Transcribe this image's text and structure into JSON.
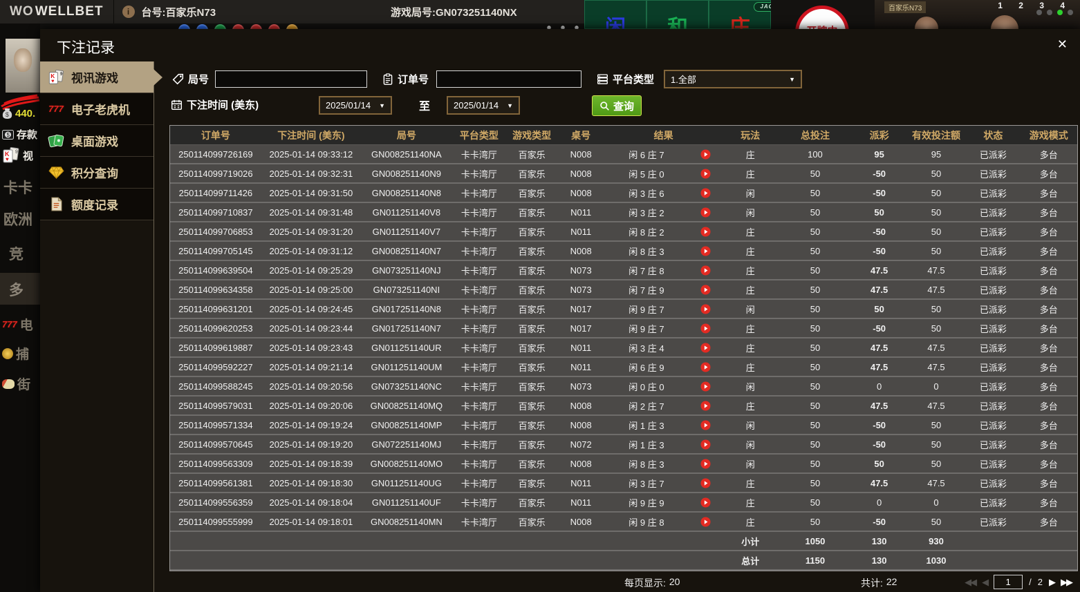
{
  "background": {
    "brand_mark": "WO",
    "brand": "WELLBET",
    "info_icon": "i",
    "table_label": "台号:百家乐N73",
    "round_label": "游戏局号:GN073251140NX",
    "jackpot_label": "JACKPOT",
    "jackpot_help": "?",
    "zone_player": "闲",
    "zone_tie": "和",
    "zone_banker": "庄",
    "dealing_badge": "开牌中",
    "video_sign": "百家乐N73",
    "shoe_numbers": "1 2 3 4",
    "left_nav": {
      "balance": "440.",
      "deposit": "存款",
      "video_label": "视",
      "items": [
        "卡卡",
        "欧洲",
        "竞",
        "多",
        "电",
        "捕",
        "街"
      ]
    }
  },
  "modal": {
    "title": "下注记录",
    "close": "✕",
    "tabs": [
      {
        "label": "视讯游戏",
        "active": true
      },
      {
        "label": "电子老虎机",
        "active": false
      },
      {
        "label": "桌面游戏",
        "active": false
      },
      {
        "label": "积分查询",
        "active": false
      },
      {
        "label": "额度记录",
        "active": false
      }
    ],
    "filters": {
      "round_label": "局号",
      "order_label": "订单号",
      "platform_label": "平台类型",
      "platform_value": "1.全部",
      "time_label": "下注时间 (美东)",
      "date_from": "2025/01/14",
      "date_to": "2025/01/14",
      "to_label": "至",
      "search_label": "查询",
      "caret": "▼"
    },
    "table": {
      "headers": [
        "订单号",
        "下注时间 (美东)",
        "局号",
        "平台类型",
        "游戏类型",
        "桌号",
        "结果",
        "玩法",
        "总投注",
        "派彩",
        "有效投注额",
        "状态",
        "游戏模式"
      ],
      "rows": [
        {
          "order": "250114099726169",
          "time": "2025-01-14 09:33:12",
          "round": "GN008251140NA",
          "platform": "卡卡湾厅",
          "game": "百家乐",
          "table_no": "N008",
          "result": "闲 6 庄 7",
          "bet_side": "庄",
          "total_bet": "100",
          "payout": "95",
          "payout_tone": "pos",
          "valid_bet": "95",
          "status": "已派彩",
          "mode": "多台"
        },
        {
          "order": "250114099719026",
          "time": "2025-01-14 09:32:31",
          "round": "GN008251140N9",
          "platform": "卡卡湾厅",
          "game": "百家乐",
          "table_no": "N008",
          "result": "闲 5 庄 0",
          "bet_side": "庄",
          "total_bet": "50",
          "payout": "-50",
          "payout_tone": "neg",
          "valid_bet": "50",
          "status": "已派彩",
          "mode": "多台"
        },
        {
          "order": "250114099711426",
          "time": "2025-01-14 09:31:50",
          "round": "GN008251140N8",
          "platform": "卡卡湾厅",
          "game": "百家乐",
          "table_no": "N008",
          "result": "闲 3 庄 6",
          "bet_side": "闲",
          "total_bet": "50",
          "payout": "-50",
          "payout_tone": "neg",
          "valid_bet": "50",
          "status": "已派彩",
          "mode": "多台"
        },
        {
          "order": "250114099710837",
          "time": "2025-01-14 09:31:48",
          "round": "GN011251140V8",
          "platform": "卡卡湾厅",
          "game": "百家乐",
          "table_no": "N011",
          "result": "闲 3 庄 2",
          "bet_side": "闲",
          "total_bet": "50",
          "payout": "50",
          "payout_tone": "pos",
          "valid_bet": "50",
          "status": "已派彩",
          "mode": "多台"
        },
        {
          "order": "250114099706853",
          "time": "2025-01-14 09:31:20",
          "round": "GN011251140V7",
          "platform": "卡卡湾厅",
          "game": "百家乐",
          "table_no": "N011",
          "result": "闲 8 庄 2",
          "bet_side": "庄",
          "total_bet": "50",
          "payout": "-50",
          "payout_tone": "neg",
          "valid_bet": "50",
          "status": "已派彩",
          "mode": "多台"
        },
        {
          "order": "250114099705145",
          "time": "2025-01-14 09:31:12",
          "round": "GN008251140N7",
          "platform": "卡卡湾厅",
          "game": "百家乐",
          "table_no": "N008",
          "result": "闲 8 庄 3",
          "bet_side": "庄",
          "total_bet": "50",
          "payout": "-50",
          "payout_tone": "neg",
          "valid_bet": "50",
          "status": "已派彩",
          "mode": "多台"
        },
        {
          "order": "250114099639504",
          "time": "2025-01-14 09:25:29",
          "round": "GN073251140NJ",
          "platform": "卡卡湾厅",
          "game": "百家乐",
          "table_no": "N073",
          "result": "闲 7 庄 8",
          "bet_side": "庄",
          "total_bet": "50",
          "payout": "47.5",
          "payout_tone": "pos",
          "valid_bet": "47.5",
          "status": "已派彩",
          "mode": "多台"
        },
        {
          "order": "250114099634358",
          "time": "2025-01-14 09:25:00",
          "round": "GN073251140NI",
          "platform": "卡卡湾厅",
          "game": "百家乐",
          "table_no": "N073",
          "result": "闲 7 庄 9",
          "bet_side": "庄",
          "total_bet": "50",
          "payout": "47.5",
          "payout_tone": "pos",
          "valid_bet": "47.5",
          "status": "已派彩",
          "mode": "多台"
        },
        {
          "order": "250114099631201",
          "time": "2025-01-14 09:24:45",
          "round": "GN017251140N8",
          "platform": "卡卡湾厅",
          "game": "百家乐",
          "table_no": "N017",
          "result": "闲 9 庄 7",
          "bet_side": "闲",
          "total_bet": "50",
          "payout": "50",
          "payout_tone": "pos",
          "valid_bet": "50",
          "status": "已派彩",
          "mode": "多台"
        },
        {
          "order": "250114099620253",
          "time": "2025-01-14 09:23:44",
          "round": "GN017251140N7",
          "platform": "卡卡湾厅",
          "game": "百家乐",
          "table_no": "N017",
          "result": "闲 9 庄 7",
          "bet_side": "庄",
          "total_bet": "50",
          "payout": "-50",
          "payout_tone": "neg",
          "valid_bet": "50",
          "status": "已派彩",
          "mode": "多台"
        },
        {
          "order": "250114099619887",
          "time": "2025-01-14 09:23:43",
          "round": "GN011251140UR",
          "platform": "卡卡湾厅",
          "game": "百家乐",
          "table_no": "N011",
          "result": "闲 3 庄 4",
          "bet_side": "庄",
          "total_bet": "50",
          "payout": "47.5",
          "payout_tone": "pos",
          "valid_bet": "47.5",
          "status": "已派彩",
          "mode": "多台"
        },
        {
          "order": "250114099592227",
          "time": "2025-01-14 09:21:14",
          "round": "GN011251140UM",
          "platform": "卡卡湾厅",
          "game": "百家乐",
          "table_no": "N011",
          "result": "闲 6 庄 9",
          "bet_side": "庄",
          "total_bet": "50",
          "payout": "47.5",
          "payout_tone": "pos",
          "valid_bet": "47.5",
          "status": "已派彩",
          "mode": "多台"
        },
        {
          "order": "250114099588245",
          "time": "2025-01-14 09:20:56",
          "round": "GN073251140NC",
          "platform": "卡卡湾厅",
          "game": "百家乐",
          "table_no": "N073",
          "result": "闲 0 庄 0",
          "bet_side": "闲",
          "total_bet": "50",
          "payout": "0",
          "payout_tone": "zero",
          "valid_bet": "0",
          "status": "已派彩",
          "mode": "多台"
        },
        {
          "order": "250114099579031",
          "time": "2025-01-14 09:20:06",
          "round": "GN008251140MQ",
          "platform": "卡卡湾厅",
          "game": "百家乐",
          "table_no": "N008",
          "result": "闲 2 庄 7",
          "bet_side": "庄",
          "total_bet": "50",
          "payout": "47.5",
          "payout_tone": "pos",
          "valid_bet": "47.5",
          "status": "已派彩",
          "mode": "多台"
        },
        {
          "order": "250114099571334",
          "time": "2025-01-14 09:19:24",
          "round": "GN008251140MP",
          "platform": "卡卡湾厅",
          "game": "百家乐",
          "table_no": "N008",
          "result": "闲 1 庄 3",
          "bet_side": "闲",
          "total_bet": "50",
          "payout": "-50",
          "payout_tone": "neg",
          "valid_bet": "50",
          "status": "已派彩",
          "mode": "多台"
        },
        {
          "order": "250114099570645",
          "time": "2025-01-14 09:19:20",
          "round": "GN072251140MJ",
          "platform": "卡卡湾厅",
          "game": "百家乐",
          "table_no": "N072",
          "result": "闲 1 庄 3",
          "bet_side": "闲",
          "total_bet": "50",
          "payout": "-50",
          "payout_tone": "neg",
          "valid_bet": "50",
          "status": "已派彩",
          "mode": "多台"
        },
        {
          "order": "250114099563309",
          "time": "2025-01-14 09:18:39",
          "round": "GN008251140MO",
          "platform": "卡卡湾厅",
          "game": "百家乐",
          "table_no": "N008",
          "result": "闲 8 庄 3",
          "bet_side": "闲",
          "total_bet": "50",
          "payout": "50",
          "payout_tone": "pos",
          "valid_bet": "50",
          "status": "已派彩",
          "mode": "多台"
        },
        {
          "order": "250114099561381",
          "time": "2025-01-14 09:18:30",
          "round": "GN011251140UG",
          "platform": "卡卡湾厅",
          "game": "百家乐",
          "table_no": "N011",
          "result": "闲 3 庄 7",
          "bet_side": "庄",
          "total_bet": "50",
          "payout": "47.5",
          "payout_tone": "pos",
          "valid_bet": "47.5",
          "status": "已派彩",
          "mode": "多台"
        },
        {
          "order": "250114099556359",
          "time": "2025-01-14 09:18:04",
          "round": "GN011251140UF",
          "platform": "卡卡湾厅",
          "game": "百家乐",
          "table_no": "N011",
          "result": "闲 9 庄 9",
          "bet_side": "庄",
          "total_bet": "50",
          "payout": "0",
          "payout_tone": "zero",
          "valid_bet": "0",
          "status": "已派彩",
          "mode": "多台"
        },
        {
          "order": "250114099555999",
          "time": "2025-01-14 09:18:01",
          "round": "GN008251140MN",
          "platform": "卡卡湾厅",
          "game": "百家乐",
          "table_no": "N008",
          "result": "闲 9 庄 8",
          "bet_side": "庄",
          "total_bet": "50",
          "payout": "-50",
          "payout_tone": "neg",
          "valid_bet": "50",
          "status": "已派彩",
          "mode": "多台"
        }
      ],
      "subtotal": {
        "label": "小计",
        "total_bet": "1050",
        "payout": "130",
        "valid_bet": "930"
      },
      "grand_total": {
        "label": "总计",
        "total_bet": "1150",
        "payout": "130",
        "valid_bet": "1030"
      }
    },
    "pagination": {
      "page_size_label": "每页显示:",
      "page_size_value": "20",
      "total_label": "共计:",
      "total_value": "22",
      "page": "1",
      "separator": "/",
      "total_pages": "2"
    }
  },
  "colors": {
    "payout_win": "#b8394d",
    "payout_loss": "#7cc242",
    "status_settled": "#3fd23f",
    "summary": "#e3e63c",
    "header_text": "#d0a966",
    "active_tab_bg": "#b3a283",
    "search_button": "#5aa71f"
  }
}
